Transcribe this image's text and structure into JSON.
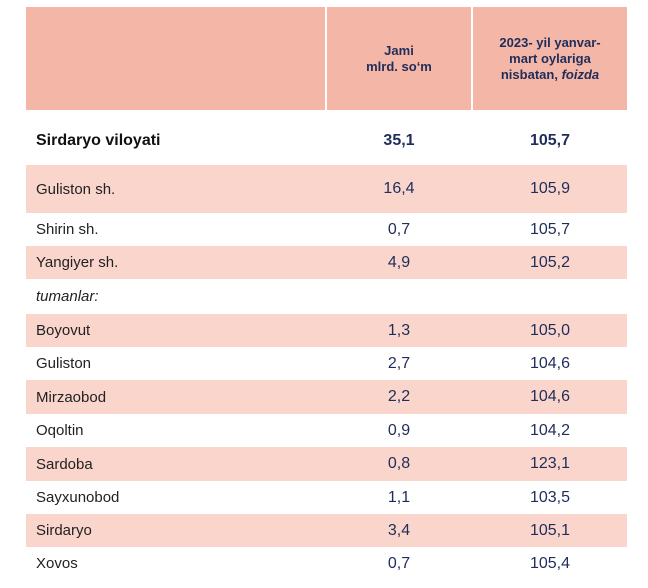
{
  "header": {
    "col1_line1": "Jami",
    "col1_line2": "mlrd. so‘m",
    "col2_line1": "2023- yil yanvar-",
    "col2_line2": "mart oylariga",
    "col2_line3": "nisbatan,",
    "col2_line3_italic": "foizda"
  },
  "rows": [
    {
      "name": "Sirdaryo viloyati",
      "jami": "35,1",
      "nisbat": "105,7"
    },
    {
      "name": "Guliston  sh.",
      "jami": "16,4",
      "nisbat": "105,9"
    },
    {
      "name": "Shirin sh.",
      "jami": "0,7",
      "nisbat": "105,7"
    },
    {
      "name": "Yangiyer sh.",
      "jami": "4,9",
      "nisbat": "105,2"
    },
    {
      "name": "tumanlar:",
      "jami": "",
      "nisbat": ""
    },
    {
      "name": "Boyovut",
      "jami": "1,3",
      "nisbat": "105,0"
    },
    {
      "name": "Guliston",
      "jami": "2,7",
      "nisbat": "104,6"
    },
    {
      "name": "Mirzaobod",
      "jami": "2,2",
      "nisbat": "104,6"
    },
    {
      "name": "Oqoltin",
      "jami": "0,9",
      "nisbat": "104,2"
    },
    {
      "name": "Sardoba",
      "jami": "0,8",
      "nisbat": "123,1"
    },
    {
      "name": "Sayxunobod",
      "jami": "1,1",
      "nisbat": "103,5"
    },
    {
      "name": "Sirdaryo",
      "jami": "3,4",
      "nisbat": "105,1"
    },
    {
      "name": "Xovos",
      "jami": "0,7",
      "nisbat": "105,4"
    }
  ]
}
